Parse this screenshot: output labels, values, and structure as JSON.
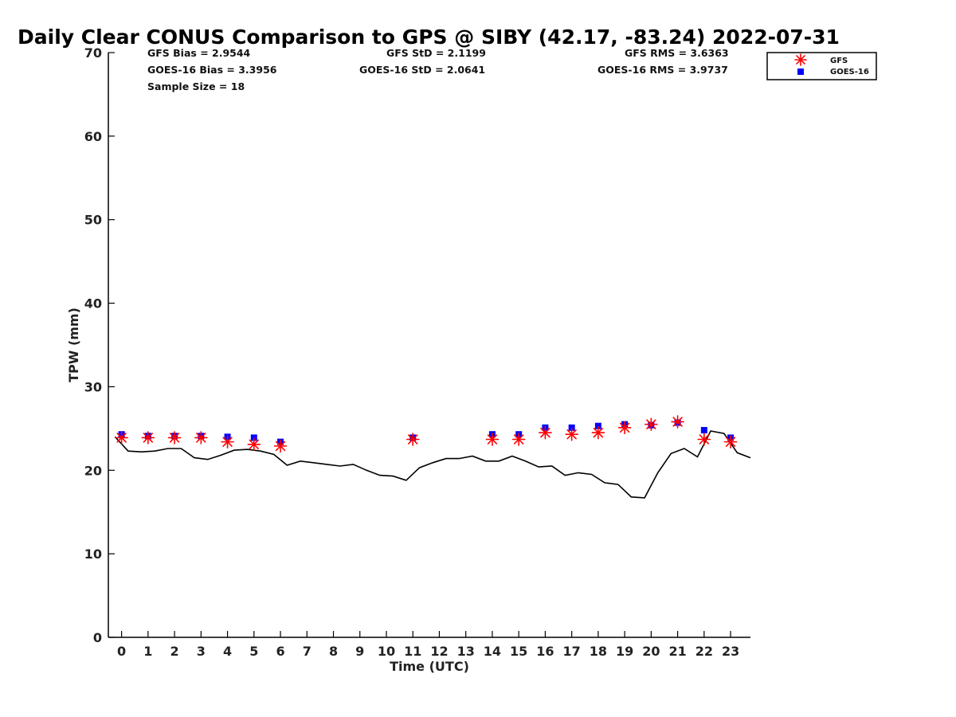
{
  "chart_data": {
    "type": "scatter",
    "title": "Daily Clear CONUS Comparison to GPS @ SIBY (42.17, -83.24) 2022-07-31",
    "xlabel": "Time (UTC)",
    "ylabel": "TPW (mm)",
    "xlim": [
      -0.5,
      23.75
    ],
    "ylim": [
      0,
      70
    ],
    "xticks": [
      "0",
      "1",
      "2",
      "3",
      "4",
      "5",
      "6",
      "7",
      "8",
      "9",
      "10",
      "11",
      "12",
      "13",
      "14",
      "15",
      "16",
      "17",
      "18",
      "19",
      "20",
      "21",
      "22",
      "23"
    ],
    "yticks": [
      "0",
      "10",
      "20",
      "30",
      "40",
      "50",
      "60",
      "70"
    ],
    "grid": false,
    "legend_position": "top-right",
    "stats": {
      "gfs_bias": "GFS Bias = 2.9544",
      "goes_bias": "GOES-16 Bias = 3.3956",
      "sample_size": "Sample Size = 18",
      "gfs_std": "GFS StD = 2.1199",
      "goes_std": "GOES-16 StD = 2.0641",
      "gfs_rms": "GFS RMS = 3.6363",
      "goes_rms": "GOES-16 RMS = 3.9737"
    },
    "series": [
      {
        "name": "GFS",
        "marker": "asterisk",
        "color": "#ff0000",
        "x": [
          0,
          1,
          2,
          3,
          4,
          5,
          6,
          11,
          14,
          15,
          16,
          17,
          18,
          19,
          20,
          21,
          22,
          23
        ],
        "y": [
          23.9,
          23.9,
          23.9,
          23.9,
          23.4,
          23.1,
          22.9,
          23.7,
          23.7,
          23.7,
          24.5,
          24.3,
          24.5,
          25.1,
          25.5,
          25.8,
          23.7,
          23.4
        ]
      },
      {
        "name": "GOES-16",
        "marker": "square",
        "color": "#0000ff",
        "x": [
          0,
          1,
          2,
          3,
          4,
          5,
          6,
          11,
          14,
          15,
          16,
          17,
          18,
          19,
          20,
          21,
          22,
          23
        ],
        "y": [
          24.3,
          24.1,
          24.1,
          24.1,
          24.0,
          23.9,
          23.4,
          23.9,
          24.3,
          24.3,
          25.1,
          25.1,
          25.3,
          25.5,
          25.4,
          25.7,
          24.8,
          23.9
        ]
      },
      {
        "name": "",
        "marker": "line",
        "color": "#000000",
        "x": [
          -0.25,
          0.25,
          0.75,
          1.25,
          1.75,
          2.25,
          2.75,
          3.25,
          3.75,
          4.25,
          4.75,
          5.25,
          5.75,
          6.25,
          6.75,
          7.25,
          7.75,
          8.25,
          8.75,
          9.25,
          9.75,
          10.25,
          10.75,
          11.25,
          11.75,
          12.25,
          12.75,
          13.25,
          13.75,
          14.25,
          14.75,
          15.25,
          15.75,
          16.25,
          16.75,
          17.25,
          17.75,
          18.25,
          18.75,
          19.25,
          19.75,
          20.25,
          20.75,
          21.25,
          21.75,
          22.25,
          22.75,
          23.25,
          23.75
        ],
        "y": [
          24.0,
          22.3,
          22.2,
          22.3,
          22.6,
          22.6,
          21.5,
          21.3,
          21.8,
          22.4,
          22.5,
          22.3,
          21.9,
          20.6,
          21.1,
          20.9,
          20.7,
          20.5,
          20.7,
          20.0,
          19.4,
          19.3,
          18.8,
          20.3,
          20.9,
          21.4,
          21.4,
          21.7,
          21.1,
          21.1,
          21.7,
          21.1,
          20.4,
          20.5,
          19.4,
          19.7,
          19.5,
          18.5,
          18.3,
          16.8,
          16.7,
          19.7,
          22.0,
          22.6,
          21.6,
          24.7,
          24.4,
          22.1,
          21.5
        ]
      }
    ]
  }
}
